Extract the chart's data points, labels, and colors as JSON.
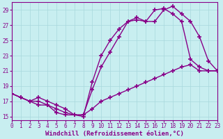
{
  "xlabel": "Windchill (Refroidissement éolien,°C)",
  "bg_color": "#c8eef0",
  "grid_color": "#a8d8dc",
  "line_color": "#880088",
  "xlim": [
    0,
    23
  ],
  "ylim": [
    14.5,
    30
  ],
  "yticks": [
    15,
    17,
    19,
    21,
    23,
    25,
    27,
    29
  ],
  "xticks": [
    0,
    1,
    2,
    3,
    4,
    5,
    6,
    7,
    8,
    9,
    10,
    11,
    12,
    13,
    14,
    15,
    16,
    17,
    18,
    19,
    20,
    21,
    22,
    23
  ],
  "line1_x": [
    0,
    1,
    2,
    3,
    4,
    5,
    6,
    7,
    8,
    9,
    10,
    11,
    12,
    13,
    14,
    15,
    16,
    17,
    18,
    19,
    20,
    21,
    22,
    23
  ],
  "line1_y": [
    18,
    17.5,
    17.0,
    17.0,
    16.5,
    16.0,
    15.5,
    15.2,
    15.0,
    19.5,
    23.0,
    25.0,
    26.5,
    27.5,
    27.7,
    27.5,
    27.5,
    29.0,
    29.5,
    28.5,
    27.5,
    25.5,
    22.3,
    21.0
  ],
  "line2_x": [
    0,
    1,
    2,
    3,
    4,
    5,
    6,
    7,
    8,
    9,
    10,
    11,
    12,
    13,
    14,
    15,
    16,
    17,
    18,
    19,
    20,
    21,
    22,
    23
  ],
  "line2_y": [
    18,
    17.5,
    17.0,
    17.5,
    17.0,
    16.5,
    16.0,
    15.2,
    15.2,
    18.5,
    21.5,
    23.5,
    25.5,
    27.5,
    28.0,
    27.5,
    29.0,
    29.2,
    28.5,
    27.5,
    22.5,
    21.5,
    21.0,
    21.0
  ],
  "line3_x": [
    0,
    1,
    2,
    3,
    4,
    5,
    6,
    7,
    8,
    9,
    10,
    11,
    12,
    13,
    14,
    15,
    16,
    17,
    18,
    19,
    20,
    21,
    22,
    23
  ],
  "line3_y": [
    18,
    17.5,
    17.0,
    16.5,
    16.5,
    15.5,
    15.2,
    15.2,
    15.2,
    16.0,
    17.0,
    17.5,
    18.0,
    18.5,
    19.0,
    19.5,
    20.0,
    20.5,
    21.0,
    21.5,
    21.8,
    21.0,
    21.0,
    21.0
  ],
  "marker": "+",
  "markersize": 4,
  "linewidth": 1.0,
  "xlabel_fontsize": 6.5,
  "tick_fontsize": 5.5
}
